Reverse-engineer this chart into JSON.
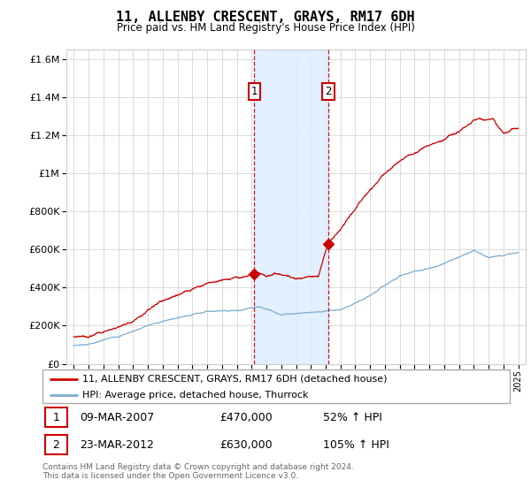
{
  "title": "11, ALLENBY CRESCENT, GRAYS, RM17 6DH",
  "subtitle": "Price paid vs. HM Land Registry's House Price Index (HPI)",
  "legend_line1": "11, ALLENBY CRESCENT, GRAYS, RM17 6DH (detached house)",
  "legend_line2": "HPI: Average price, detached house, Thurrock",
  "red_color": "#cc0000",
  "blue_color": "#7aadcf",
  "annotation1_date": "09-MAR-2007",
  "annotation1_price": "£470,000",
  "annotation1_hpi": "52% ↑ HPI",
  "annotation2_date": "23-MAR-2012",
  "annotation2_price": "£630,000",
  "annotation2_hpi": "105% ↑ HPI",
  "footnote": "Contains HM Land Registry data © Crown copyright and database right 2024.\nThis data is licensed under the Open Government Licence v3.0.",
  "ylim": [
    0,
    1650000
  ],
  "yticks": [
    0,
    200000,
    400000,
    600000,
    800000,
    1000000,
    1200000,
    1400000,
    1600000
  ],
  "sale1_x": 2007.19,
  "sale1_y": 470000,
  "sale2_x": 2012.19,
  "sale2_y": 630000,
  "shade_x1": 2007.19,
  "shade_x2": 2012.19,
  "xmin": 1994.5,
  "xmax": 2025.5
}
